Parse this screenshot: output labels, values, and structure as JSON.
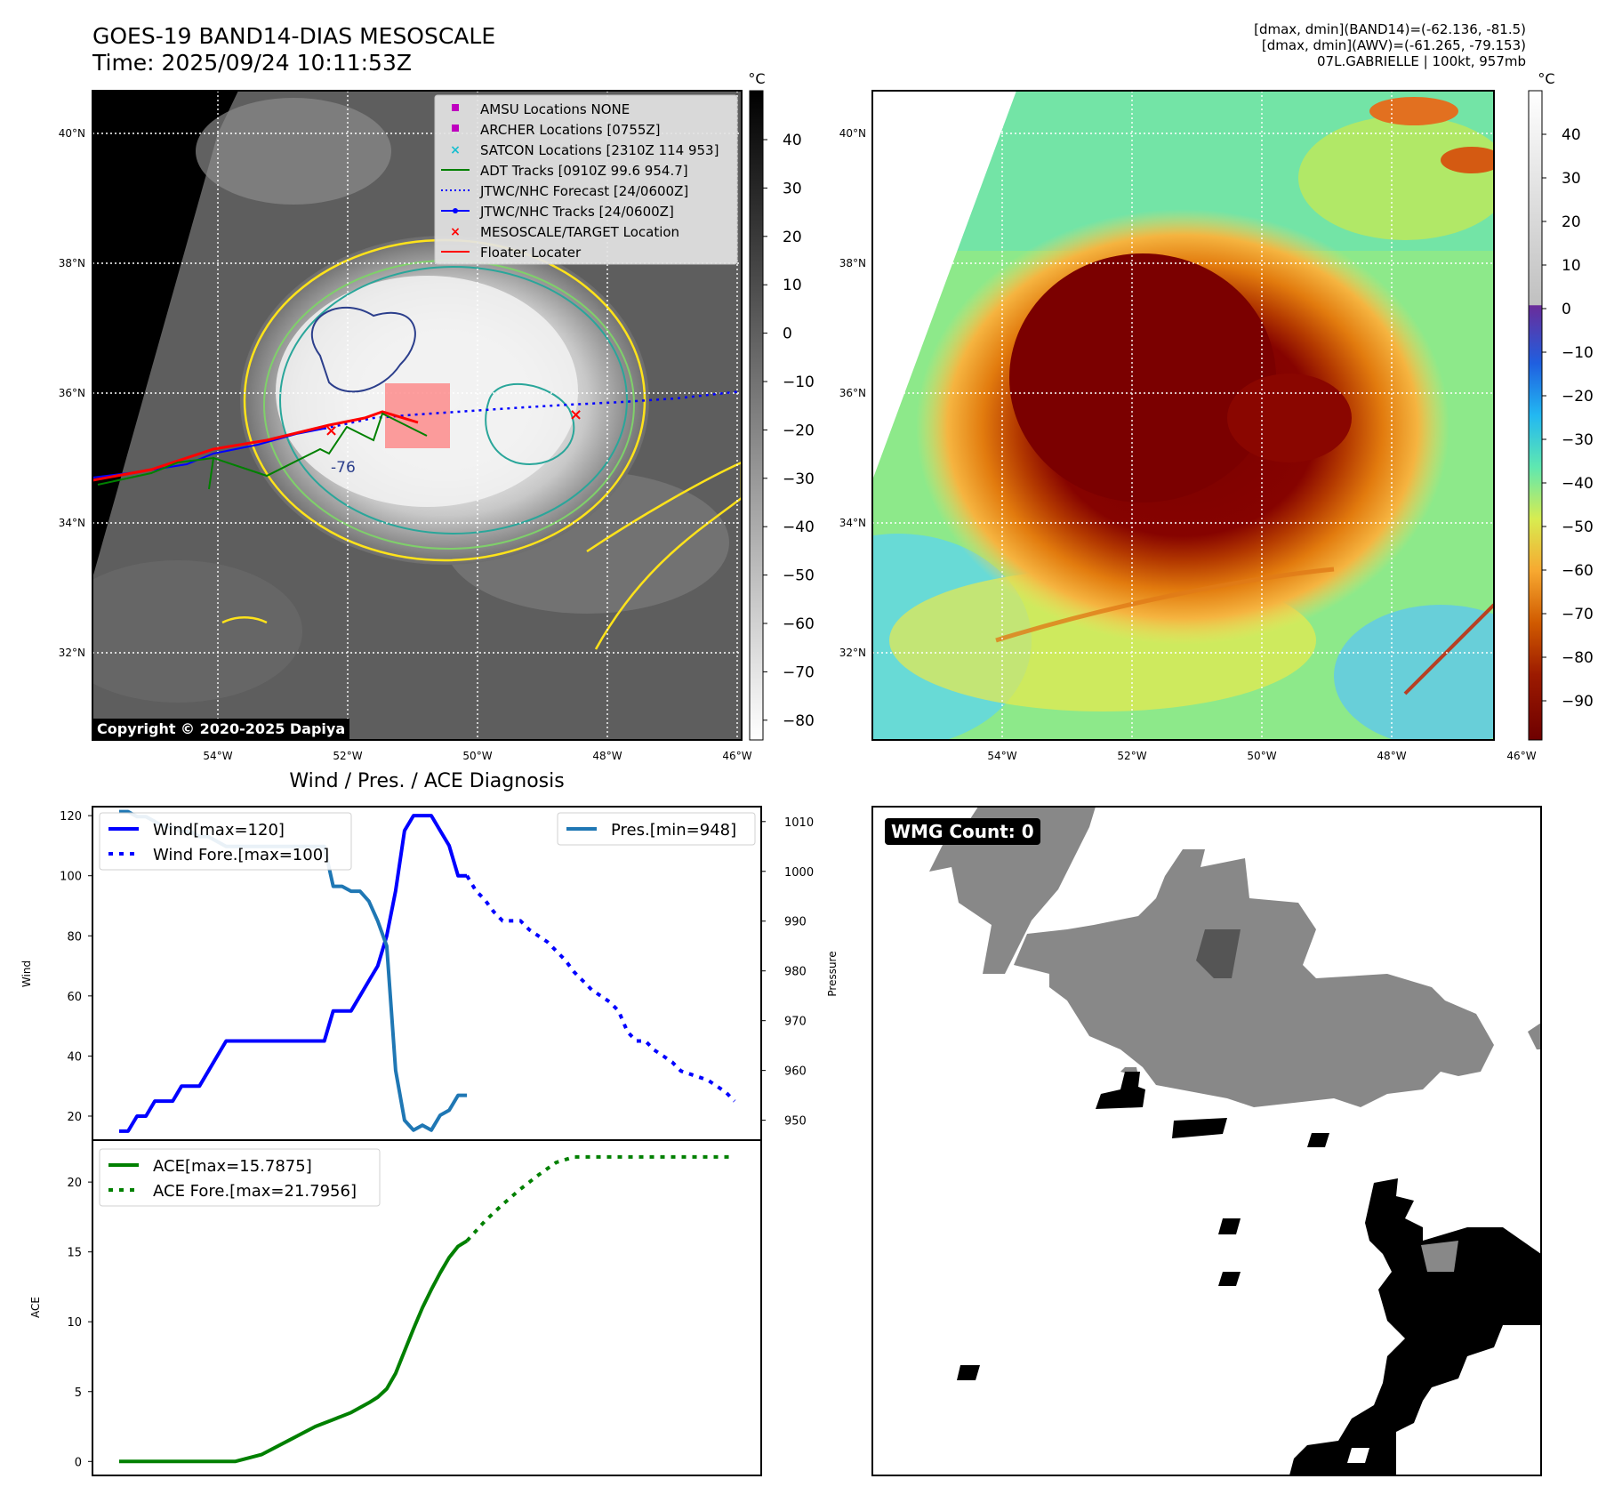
{
  "header": {
    "title_line1": "GOES-19 BAND14-DIAS MESOSCALE",
    "title_line2": "Time: 2025/09/24 10:11:53Z",
    "right_line1": "[dmax, dmin](BAND14)=(-62.136, -81.5)",
    "right_line2": "[dmax, dmin](AWV)=(-61.265, -79.153)",
    "right_line3": "07L.GABRIELLE | 100kt, 957mb"
  },
  "map": {
    "lat_labels": [
      "40°N",
      "38°N",
      "36°N",
      "34°N",
      "32°N"
    ],
    "lon_labels": [
      "54°W",
      "52°W",
      "50°W",
      "48°W",
      "46°W"
    ],
    "copyright": "Copyright © 2020-2025 Dapiya",
    "contour_label": "-76",
    "legend": [
      {
        "label": "AMSU Locations NONE",
        "marker": "square",
        "color": "#bf00bf"
      },
      {
        "label": "ARCHER Locations [0755Z]",
        "marker": "square",
        "color": "#bf00bf"
      },
      {
        "label": "SATCON Locations [2310Z 114 953]",
        "marker": "x",
        "color": "#17becf"
      },
      {
        "label": "ADT Tracks [0910Z 99.6 954.7]",
        "marker": "line",
        "color": "#008000"
      },
      {
        "label": "JTWC/NHC Forecast [24/0600Z]",
        "marker": "dotted",
        "color": "#0000ff"
      },
      {
        "label": "JTWC/NHC Tracks [24/0600Z]",
        "marker": "line-dot",
        "color": "#0000ff"
      },
      {
        "label": "MESOSCALE/TARGET Location",
        "marker": "x",
        "color": "#ff0000"
      },
      {
        "label": "Floater Locater",
        "marker": "line",
        "color": "#ff0000"
      }
    ]
  },
  "colorbar_gray": {
    "unit": "°C",
    "ticks": [
      "40",
      "30",
      "20",
      "10",
      "0",
      "−10",
      "−20",
      "−30",
      "−40",
      "−50",
      "−60",
      "−70",
      "−80"
    ]
  },
  "colorbar_color": {
    "unit": "°C",
    "ticks": [
      "40",
      "30",
      "20",
      "10",
      "0",
      "−10",
      "−20",
      "−30",
      "−40",
      "−50",
      "−60",
      "−70",
      "−80",
      "−90"
    ]
  },
  "diagnosis_title": "Wind / Pres. / ACE Diagnosis",
  "wmg_label": "WMG Count: 0",
  "chart_data": [
    {
      "type": "line",
      "title": "Wind / Pres. / ACE Diagnosis",
      "ylabel": "Wind",
      "y2label": "Pressure",
      "ylim": [
        12,
        123
      ],
      "y2lim": [
        946,
        1013
      ],
      "yticks": [
        20,
        40,
        60,
        80,
        100,
        120
      ],
      "y2ticks": [
        950,
        960,
        970,
        980,
        990,
        1000,
        1010
      ],
      "series": [
        {
          "name": "Wind[max=120]",
          "axis": "left",
          "style": "solid",
          "color": "#0000ff",
          "x": [
            0,
            1,
            2,
            3,
            4,
            5,
            6,
            7,
            8,
            9,
            10,
            11,
            12,
            13,
            14,
            15,
            16,
            17,
            18,
            19,
            20,
            21,
            22,
            23,
            24,
            25,
            26,
            27,
            28,
            29,
            30,
            31,
            32,
            33,
            34,
            35,
            36,
            37,
            38,
            39
          ],
          "values": [
            15,
            15,
            20,
            20,
            25,
            25,
            25,
            30,
            30,
            30,
            35,
            40,
            45,
            45,
            45,
            45,
            45,
            45,
            45,
            45,
            45,
            45,
            45,
            45,
            55,
            55,
            55,
            60,
            65,
            70,
            80,
            95,
            115,
            120,
            120,
            120,
            115,
            110,
            100,
            100
          ]
        },
        {
          "name": "Wind Fore.[max=100]",
          "axis": "left",
          "style": "dotted",
          "color": "#0000ff",
          "x": [
            39,
            40,
            41,
            42,
            43,
            44,
            45,
            46,
            47,
            48,
            49,
            50,
            51,
            52,
            53,
            54,
            55,
            56,
            57,
            58,
            59,
            60,
            61,
            62,
            63,
            64,
            65,
            66,
            67,
            68,
            69
          ],
          "values": [
            100,
            95,
            92,
            88,
            85,
            85,
            85,
            82,
            80,
            78,
            75,
            72,
            68,
            65,
            62,
            60,
            58,
            55,
            48,
            45,
            45,
            42,
            40,
            38,
            35,
            34,
            33,
            32,
            30,
            28,
            25
          ]
        },
        {
          "name": "Pres.[min=948]",
          "axis": "right",
          "style": "solid",
          "color": "#1f77b4",
          "x": [
            0,
            1,
            2,
            3,
            4,
            5,
            6,
            7,
            8,
            9,
            10,
            11,
            12,
            13,
            14,
            15,
            16,
            17,
            18,
            19,
            20,
            21,
            22,
            23,
            24,
            25,
            26,
            27,
            28,
            29,
            30,
            31,
            32,
            33,
            34,
            35,
            36,
            37,
            38,
            39
          ],
          "values": [
            1012,
            1012,
            1011,
            1011,
            1010,
            1009,
            1009,
            1008,
            1008,
            1007,
            1007,
            1006,
            1005,
            1005,
            1005,
            1005,
            1005,
            1005,
            1005,
            1005,
            1005,
            1005,
            1005,
            1005,
            997,
            997,
            996,
            996,
            994,
            990,
            985,
            960,
            950,
            948,
            949,
            948,
            951,
            952,
            955,
            955
          ]
        }
      ]
    },
    {
      "type": "line",
      "ylabel": "ACE",
      "ylim": [
        -1,
        23
      ],
      "yticks": [
        0,
        5,
        10,
        15,
        20
      ],
      "series": [
        {
          "name": "ACE[max=15.7875]",
          "style": "solid",
          "color": "#008000",
          "x": [
            0,
            5,
            10,
            13,
            16,
            19,
            22,
            24,
            26,
            28,
            29,
            30,
            31,
            32,
            33,
            34,
            35,
            36,
            37,
            38,
            39
          ],
          "values": [
            0,
            0,
            0,
            0,
            0.5,
            1.5,
            2.5,
            3.0,
            3.5,
            4.2,
            4.6,
            5.2,
            6.3,
            7.9,
            9.5,
            11.0,
            12.3,
            13.5,
            14.6,
            15.4,
            15.7875
          ]
        },
        {
          "name": "ACE Fore.[max=21.7956]",
          "style": "dotted",
          "color": "#008000",
          "x": [
            39,
            41,
            43,
            45,
            47,
            49,
            51,
            55,
            60,
            65,
            69
          ],
          "values": [
            15.7875,
            17.2,
            18.4,
            19.5,
            20.5,
            21.4,
            21.7956,
            21.7956,
            21.7956,
            21.7956,
            21.7956
          ]
        }
      ]
    }
  ]
}
